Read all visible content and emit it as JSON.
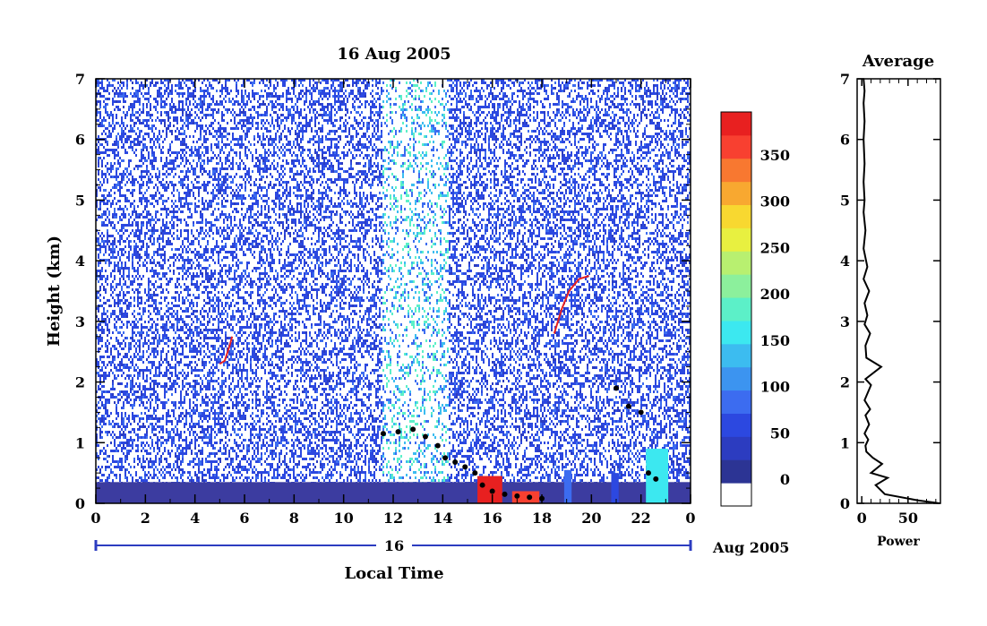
{
  "title": "16 Aug 2005",
  "colors": {
    "scale": [
      "#ffffff",
      "#2c3494",
      "#2c3cc0",
      "#2c48e0",
      "#3c6cf0",
      "#3c94f0",
      "#3cbcf0",
      "#3ce8f0",
      "#5cf0c8",
      "#8cf09c",
      "#b8f070",
      "#e8f040",
      "#f8d830",
      "#f8a830",
      "#f87830",
      "#f84030",
      "#e82020"
    ]
  },
  "chart_data": [
    {
      "type": "heatmap",
      "title": "16 Aug 2005",
      "xlabel": "Local Time",
      "ylabel": "Height (km)",
      "x_ticks": [
        "0",
        "2",
        "4",
        "6",
        "8",
        "10",
        "12",
        "14",
        "16",
        "18",
        "20",
        "22",
        "0"
      ],
      "y_ticks": [
        "0",
        "1",
        "2",
        "3",
        "4",
        "5",
        "6",
        "7"
      ],
      "xlim": [
        0,
        24
      ],
      "ylim": [
        0,
        7
      ],
      "date_axis": {
        "day_label": "16",
        "month_label": "Aug 2005"
      },
      "colorbar": {
        "ticks": [
          "0",
          "50",
          "100",
          "150",
          "200",
          "250",
          "300",
          "350"
        ],
        "range": [
          0,
          375
        ]
      },
      "features": {
        "surface_layer": {
          "x": [
            0,
            24
          ],
          "height_top": 0.35,
          "value": 20
        },
        "black_trace": [
          [
            11.6,
            1.15
          ],
          [
            12.2,
            1.18
          ],
          [
            12.8,
            1.22
          ],
          [
            13.3,
            1.1
          ],
          [
            13.8,
            0.95
          ],
          [
            14.1,
            0.75
          ],
          [
            14.5,
            0.68
          ],
          [
            14.9,
            0.6
          ],
          [
            15.3,
            0.5
          ],
          [
            15.6,
            0.3
          ],
          [
            16.0,
            0.2
          ],
          [
            16.5,
            0.15
          ],
          [
            17.0,
            0.12
          ],
          [
            17.5,
            0.1
          ],
          [
            18.0,
            0.08
          ],
          [
            21.0,
            1.9
          ],
          [
            21.5,
            1.6
          ],
          [
            22.0,
            1.5
          ],
          [
            22.3,
            0.5
          ],
          [
            22.6,
            0.4
          ]
        ],
        "red_trace": [
          [
            5.0,
            2.3
          ],
          [
            5.2,
            2.35
          ],
          [
            5.4,
            2.6
          ],
          [
            5.5,
            2.75
          ],
          [
            18.5,
            2.8
          ],
          [
            18.8,
            3.2
          ],
          [
            19.1,
            3.5
          ],
          [
            19.5,
            3.7
          ],
          [
            19.9,
            3.75
          ]
        ],
        "hot_spots": [
          {
            "x": [
              15.4,
              16.4
            ],
            "height_top": 0.45,
            "value": 360
          },
          {
            "x": [
              16.8,
              17.9
            ],
            "height_top": 0.2,
            "value": 340
          }
        ],
        "blue_columns": [
          {
            "x": [
              18.9,
              19.2
            ],
            "height_top": 0.55,
            "value": 80
          },
          {
            "x": [
              20.8,
              21.1
            ],
            "height_top": 0.5,
            "value": 70
          },
          {
            "x": [
              22.2,
              23.1
            ],
            "height_top": 0.9,
            "value": 150
          }
        ],
        "noise_band": {
          "x": [
            11.5,
            14.2
          ],
          "value": 170
        }
      }
    },
    {
      "type": "line",
      "title": "Average",
      "xlabel": "Power",
      "x_ticks": [
        "0",
        "50"
      ],
      "y_ticks": [
        "0",
        "1",
        "2",
        "3",
        "4",
        "5",
        "6",
        "7"
      ],
      "xlim": [
        -5,
        85
      ],
      "ylim": [
        0,
        7
      ],
      "points": [
        [
          84,
          0.0
        ],
        [
          60,
          0.05
        ],
        [
          25,
          0.15
        ],
        [
          15,
          0.3
        ],
        [
          28,
          0.42
        ],
        [
          10,
          0.5
        ],
        [
          22,
          0.65
        ],
        [
          12,
          0.75
        ],
        [
          5,
          0.85
        ],
        [
          4,
          0.95
        ],
        [
          7,
          1.05
        ],
        [
          3,
          1.15
        ],
        [
          8,
          1.3
        ],
        [
          4,
          1.45
        ],
        [
          9,
          1.55
        ],
        [
          3,
          1.7
        ],
        [
          10,
          1.95
        ],
        [
          4,
          2.05
        ],
        [
          21,
          2.25
        ],
        [
          5,
          2.4
        ],
        [
          4,
          2.6
        ],
        [
          9,
          2.8
        ],
        [
          3,
          2.95
        ],
        [
          6,
          3.1
        ],
        [
          3,
          3.3
        ],
        [
          8,
          3.5
        ],
        [
          2,
          3.7
        ],
        [
          6,
          3.9
        ],
        [
          2,
          4.2
        ],
        [
          4,
          4.5
        ],
        [
          2,
          4.8
        ],
        [
          3,
          5.0
        ],
        [
          2,
          5.3
        ],
        [
          3,
          5.6
        ],
        [
          2,
          6.0
        ],
        [
          3,
          6.3
        ],
        [
          2,
          6.6
        ],
        [
          3,
          6.8
        ],
        [
          2,
          7.0
        ]
      ]
    }
  ]
}
